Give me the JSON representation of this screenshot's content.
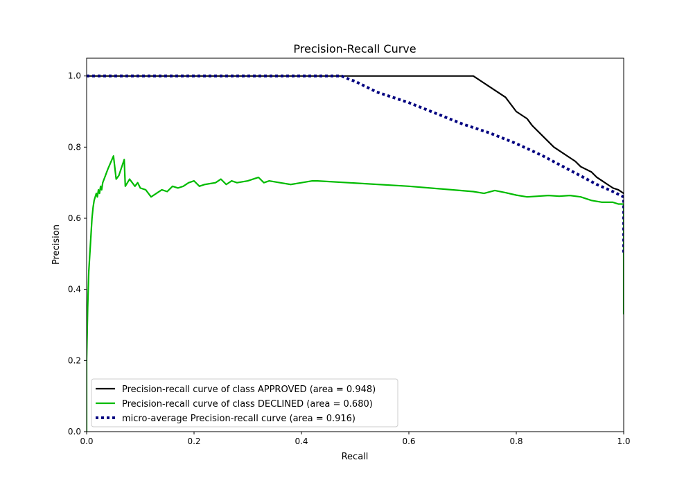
{
  "chart_data": {
    "type": "line",
    "title": "Precision-Recall Curve",
    "xlabel": "Recall",
    "ylabel": "Precision",
    "xlim": [
      0,
      1
    ],
    "ylim": [
      0,
      1.05
    ],
    "xticks": [
      0,
      0.2,
      0.4,
      0.6,
      0.8,
      1.0
    ],
    "xtick_labels": [
      "0.0",
      "0.2",
      "0.4",
      "0.6",
      "0.8",
      "1.0"
    ],
    "yticks": [
      0,
      0.2,
      0.4,
      0.6,
      0.8,
      1.0
    ],
    "ytick_labels": [
      "0.0",
      "0.2",
      "0.4",
      "0.6",
      "0.8",
      "1.0"
    ],
    "grid": false,
    "legend_position": "lower-left",
    "series": [
      {
        "name": "Precision-recall curve of class APPROVED (area = 0.948)",
        "color": "#000000",
        "style": "solid",
        "x": [
          0.0,
          0.47,
          0.72,
          0.735,
          0.75,
          0.76,
          0.77,
          0.78,
          0.79,
          0.8,
          0.81,
          0.82,
          0.83,
          0.85,
          0.87,
          0.9,
          0.91,
          0.92,
          0.94,
          0.95,
          0.96,
          0.97,
          0.98,
          0.99,
          1.0
        ],
        "y": [
          1.0,
          1.0,
          1.0,
          0.985,
          0.97,
          0.96,
          0.95,
          0.94,
          0.92,
          0.9,
          0.89,
          0.88,
          0.86,
          0.83,
          0.8,
          0.77,
          0.76,
          0.745,
          0.73,
          0.715,
          0.705,
          0.695,
          0.685,
          0.68,
          0.67
        ]
      },
      {
        "name": "Precision-recall curve of class DECLINED (area = 0.680)",
        "color": "#00bb00",
        "style": "solid",
        "x": [
          0.0,
          0.0,
          0.002,
          0.004,
          0.006,
          0.008,
          0.01,
          0.012,
          0.014,
          0.016,
          0.018,
          0.02,
          0.022,
          0.024,
          0.026,
          0.028,
          0.03,
          0.035,
          0.04,
          0.05,
          0.055,
          0.06,
          0.07,
          0.072,
          0.08,
          0.09,
          0.095,
          0.1,
          0.11,
          0.12,
          0.13,
          0.14,
          0.15,
          0.16,
          0.17,
          0.18,
          0.19,
          0.2,
          0.21,
          0.22,
          0.24,
          0.25,
          0.26,
          0.27,
          0.28,
          0.3,
          0.32,
          0.33,
          0.34,
          0.36,
          0.38,
          0.4,
          0.42,
          0.43,
          0.6,
          0.72,
          0.74,
          0.76,
          0.78,
          0.8,
          0.82,
          0.84,
          0.86,
          0.88,
          0.9,
          0.92,
          0.94,
          0.96,
          0.98,
          0.99,
          1.0,
          1.0
        ],
        "y": [
          0.0,
          0.2,
          0.35,
          0.45,
          0.5,
          0.55,
          0.6,
          0.63,
          0.65,
          0.66,
          0.67,
          0.66,
          0.68,
          0.67,
          0.69,
          0.68,
          0.7,
          0.72,
          0.74,
          0.775,
          0.71,
          0.72,
          0.765,
          0.69,
          0.71,
          0.69,
          0.7,
          0.685,
          0.68,
          0.66,
          0.67,
          0.68,
          0.675,
          0.69,
          0.685,
          0.69,
          0.7,
          0.705,
          0.69,
          0.695,
          0.7,
          0.71,
          0.695,
          0.705,
          0.7,
          0.705,
          0.715,
          0.7,
          0.705,
          0.7,
          0.695,
          0.7,
          0.705,
          0.705,
          0.69,
          0.675,
          0.67,
          0.678,
          0.672,
          0.665,
          0.66,
          0.662,
          0.664,
          0.662,
          0.664,
          0.66,
          0.65,
          0.645,
          0.645,
          0.64,
          0.64,
          0.33
        ]
      },
      {
        "name": "micro-average Precision-recall curve (area = 0.916)",
        "color": "#000080",
        "style": "dotted",
        "x": [
          0.0,
          0.475,
          0.49,
          0.5,
          0.52,
          0.54,
          0.56,
          0.6,
          0.65,
          0.7,
          0.75,
          0.8,
          0.85,
          0.9,
          0.95,
          0.98,
          1.0,
          1.0
        ],
        "y": [
          1.0,
          1.0,
          0.99,
          0.985,
          0.97,
          0.955,
          0.945,
          0.925,
          0.895,
          0.865,
          0.84,
          0.81,
          0.775,
          0.735,
          0.695,
          0.675,
          0.66,
          0.5
        ]
      }
    ]
  }
}
